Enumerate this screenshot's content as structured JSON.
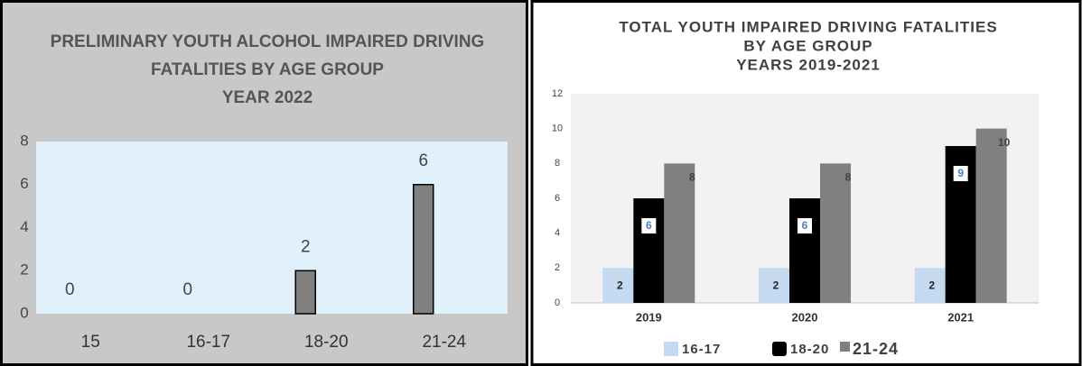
{
  "chart_data": [
    {
      "type": "bar",
      "title": [
        "PRELIMINARY YOUTH ALCOHOL IMPAIRED DRIVING",
        "FATALITIES BY AGE GROUP",
        "YEAR 2022"
      ],
      "categories": [
        "15",
        "16-17",
        "18-20",
        "21-24"
      ],
      "values": [
        0,
        0,
        2,
        6
      ],
      "color": "#808080",
      "ylim": [
        0,
        8
      ],
      "yticks": [
        0,
        2,
        4,
        6,
        8
      ],
      "grid": false
    },
    {
      "type": "grouped_bar",
      "title": [
        "TOTAL YOUTH IMPAIRED DRIVING FATALITIES",
        "BY AGE GROUP",
        "YEARS 2019-2021"
      ],
      "categories": [
        "2019",
        "2020",
        "2021"
      ],
      "series": [
        {
          "name": "16-17",
          "color": "#c5d9f1",
          "values": [
            2,
            2,
            2
          ]
        },
        {
          "name": "18-20",
          "color": "#000000",
          "values": [
            6,
            6,
            9
          ]
        },
        {
          "name": "21-24",
          "color": "#808080",
          "values": [
            8,
            8,
            10
          ]
        }
      ],
      "ylim": [
        0,
        12
      ],
      "yticks": [
        0,
        2,
        4,
        6,
        8,
        10,
        12
      ],
      "grid": false,
      "legend": "bottom"
    }
  ]
}
